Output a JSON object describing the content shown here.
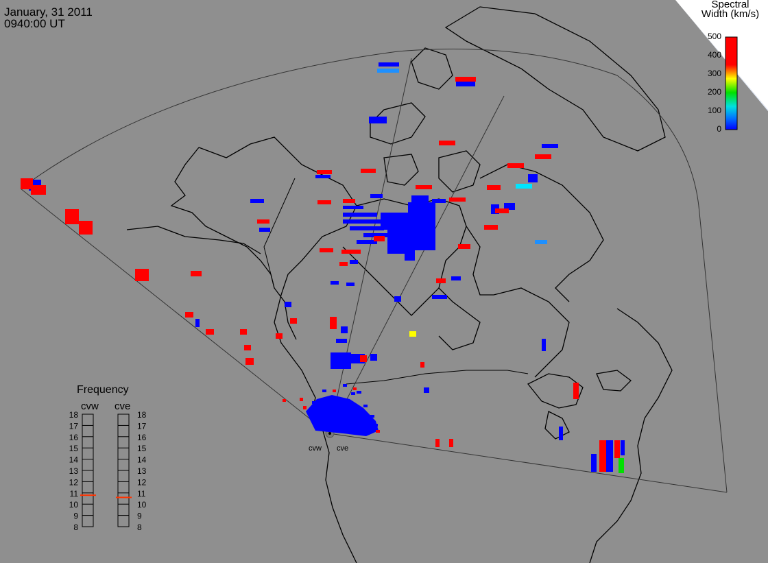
{
  "header": {
    "date": "January, 31 2011",
    "time": "0940:00 UT"
  },
  "color_scale": {
    "title_line1": "Spectral",
    "title_line2": "Width (km/s)",
    "ticks": [
      "500",
      "400",
      "300",
      "200",
      "100",
      "0"
    ],
    "colors": [
      "#ff0000",
      "#ff8000",
      "#ffff00",
      "#00e000",
      "#00e0e0",
      "#0070ff",
      "#0000ff"
    ]
  },
  "frequency": {
    "title": "Frequency",
    "radars": [
      {
        "name": "cvw",
        "level": 10.8
      },
      {
        "name": "cve",
        "level": 10.6
      }
    ],
    "ticks": [
      "18",
      "17",
      "16",
      "15",
      "14",
      "13",
      "12",
      "11",
      "10",
      "9",
      "8"
    ]
  },
  "radars": {
    "west_label": "cvw",
    "east_label": "cve"
  }
}
